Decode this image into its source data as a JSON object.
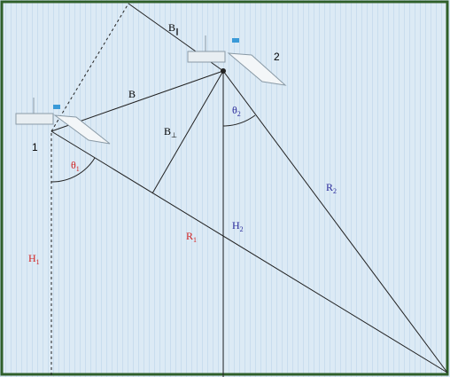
{
  "diagram": {
    "satellites": [
      {
        "label": "1"
      },
      {
        "label": "2"
      }
    ],
    "baseline": {
      "label": "B"
    },
    "parallel_baseline": {
      "base": "B",
      "sub": "∥"
    },
    "perpendicular_baseline": {
      "base": "B",
      "sub": "⊥"
    },
    "look_angles": [
      {
        "base": "θ",
        "sub": "1"
      },
      {
        "base": "θ",
        "sub": "2"
      }
    ],
    "heights": [
      {
        "base": "H",
        "sub": "1"
      },
      {
        "base": "H",
        "sub": "2"
      }
    ],
    "ranges": [
      {
        "base": "R",
        "sub": "1"
      },
      {
        "base": "R",
        "sub": "2"
      }
    ]
  }
}
